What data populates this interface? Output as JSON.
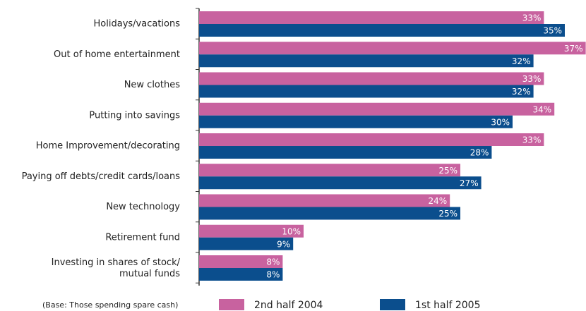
{
  "chart_data": {
    "type": "bar",
    "orientation": "horizontal",
    "categories": [
      "Holidays/vacations",
      "Out of home entertainment",
      "New clothes",
      "Putting into savings",
      "Home Improvement/decorating",
      "Paying off debts/credit cards/loans",
      "New technology",
      "Retirement fund",
      "Investing in shares of stock/\nmutual funds"
    ],
    "series": [
      {
        "name": "2nd half 2004",
        "color": "#c8629f",
        "values": [
          33,
          37,
          33,
          34,
          33,
          25,
          24,
          10,
          8
        ],
        "value_labels": [
          "33%",
          "37%",
          "33%",
          "34%",
          "33%",
          "25%",
          "24%",
          "10%",
          "8%"
        ]
      },
      {
        "name": "1st half 2005",
        "color": "#0b4e8d",
        "values": [
          35,
          32,
          32,
          30,
          28,
          27,
          25,
          9,
          8
        ],
        "value_labels": [
          "35%",
          "32%",
          "32%",
          "30%",
          "28%",
          "27%",
          "25%",
          "9%",
          "8%"
        ]
      }
    ],
    "footnote": "(Base: Those spending spare cash)"
  }
}
